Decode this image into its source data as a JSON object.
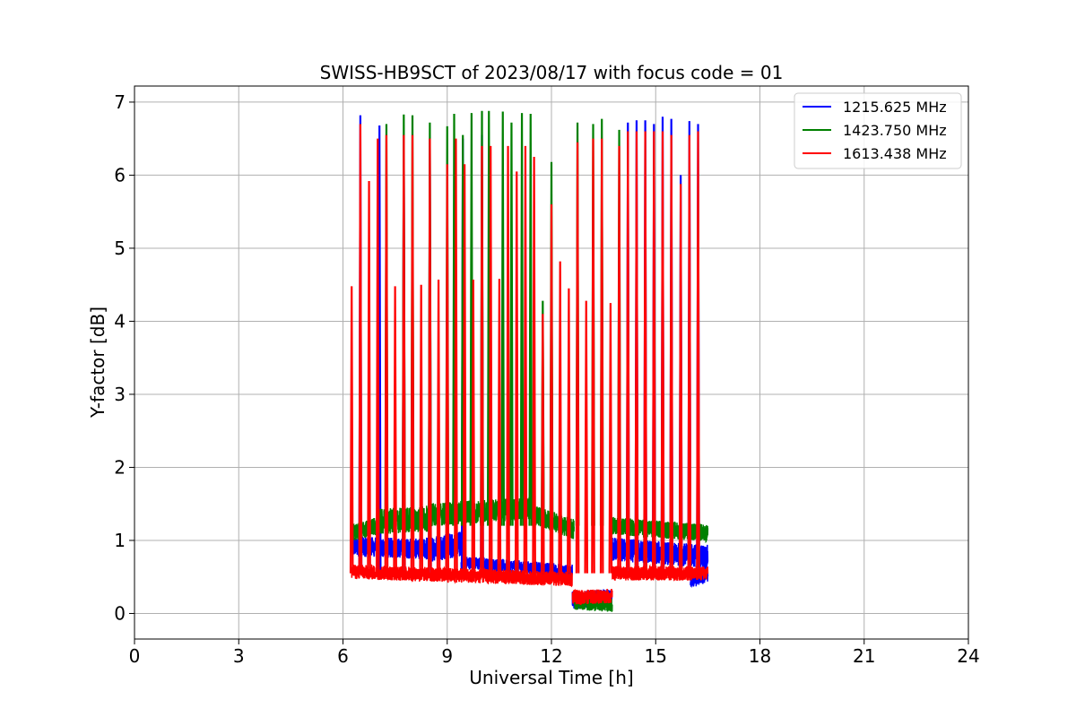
{
  "chart_data": {
    "type": "line",
    "title": "SWISS-HB9SCT of 2023/08/17 with focus code = 01",
    "xlabel": "Universal Time [h]",
    "ylabel": "Y-factor [dB]",
    "xlim": [
      0,
      24
    ],
    "ylim": [
      -0.35,
      7.22
    ],
    "xticks": [
      0,
      3,
      6,
      9,
      12,
      15,
      18,
      21,
      24
    ],
    "yticks": [
      0,
      1,
      2,
      3,
      4,
      5,
      6,
      7
    ],
    "grid": true,
    "legend_position": "upper right",
    "series": [
      {
        "name": "1215.625 MHz",
        "color": "#0000ff",
        "baseline_segments": [
          {
            "from": 6.25,
            "to": 8.4,
            "start": 0.92,
            "end": 0.88,
            "noise": 0.14
          },
          {
            "from": 8.4,
            "to": 9.4,
            "start": 0.88,
            "end": 0.95,
            "noise": 0.18
          },
          {
            "from": 9.4,
            "to": 12.6,
            "start": 0.7,
            "end": 0.58,
            "noise": 0.09
          },
          {
            "from": 12.6,
            "to": 13.75,
            "start": 0.18,
            "end": 0.22,
            "noise": 0.12
          },
          {
            "from": 13.75,
            "to": 16.5,
            "start": 0.88,
            "end": 0.78,
            "noise": 0.16
          },
          {
            "from": 16.0,
            "to": 16.5,
            "start": 0.45,
            "end": 0.55,
            "noise": 0.12
          }
        ],
        "spikes": [
          {
            "t": 6.5,
            "v": 6.82
          },
          {
            "t": 7.05,
            "v": 6.68
          },
          {
            "t": 7.75,
            "v": 6.55
          },
          {
            "t": 8.5,
            "v": 6.5
          },
          {
            "t": 9.45,
            "v": 6.5
          },
          {
            "t": 10.0,
            "v": 6.55
          },
          {
            "t": 14.2,
            "v": 6.72
          },
          {
            "t": 14.45,
            "v": 6.75
          },
          {
            "t": 14.7,
            "v": 6.75
          },
          {
            "t": 14.95,
            "v": 6.7
          },
          {
            "t": 15.2,
            "v": 6.8
          },
          {
            "t": 15.45,
            "v": 6.77
          },
          {
            "t": 15.72,
            "v": 6.0
          },
          {
            "t": 15.97,
            "v": 6.74
          },
          {
            "t": 16.22,
            "v": 6.7
          }
        ]
      },
      {
        "name": "1423.750 MHz",
        "color": "#008000",
        "baseline_segments": [
          {
            "from": 6.25,
            "to": 7.0,
            "start": 1.1,
            "end": 1.2,
            "noise": 0.12
          },
          {
            "from": 7.0,
            "to": 8.5,
            "start": 1.25,
            "end": 1.3,
            "noise": 0.18
          },
          {
            "from": 8.5,
            "to": 11.5,
            "start": 1.35,
            "end": 1.45,
            "noise": 0.16
          },
          {
            "from": 11.5,
            "to": 12.65,
            "start": 1.35,
            "end": 1.15,
            "noise": 0.14
          },
          {
            "from": 12.65,
            "to": 13.75,
            "start": 0.15,
            "end": 0.12,
            "noise": 0.1
          },
          {
            "from": 13.75,
            "to": 16.5,
            "start": 1.2,
            "end": 1.1,
            "noise": 0.12
          }
        ],
        "spikes": [
          {
            "t": 7.25,
            "v": 6.7
          },
          {
            "t": 7.75,
            "v": 6.83
          },
          {
            "t": 8.0,
            "v": 6.82
          },
          {
            "t": 8.5,
            "v": 6.72
          },
          {
            "t": 9.0,
            "v": 6.67
          },
          {
            "t": 9.2,
            "v": 6.84
          },
          {
            "t": 9.45,
            "v": 6.55
          },
          {
            "t": 9.7,
            "v": 6.85
          },
          {
            "t": 10.0,
            "v": 6.88
          },
          {
            "t": 10.2,
            "v": 6.88
          },
          {
            "t": 10.6,
            "v": 6.87
          },
          {
            "t": 10.85,
            "v": 6.72
          },
          {
            "t": 11.15,
            "v": 6.85
          },
          {
            "t": 11.4,
            "v": 6.84
          },
          {
            "t": 11.75,
            "v": 4.28
          },
          {
            "t": 12.0,
            "v": 6.18
          },
          {
            "t": 12.75,
            "v": 6.72
          },
          {
            "t": 13.2,
            "v": 6.7
          },
          {
            "t": 13.45,
            "v": 6.77
          },
          {
            "t": 13.95,
            "v": 6.62
          }
        ]
      },
      {
        "name": "1613.438 MHz",
        "color": "#ff0000",
        "baseline_segments": [
          {
            "from": 6.25,
            "to": 12.6,
            "start": 0.57,
            "end": 0.47,
            "noise": 0.1
          },
          {
            "from": 12.6,
            "to": 13.75,
            "start": 0.22,
            "end": 0.24,
            "noise": 0.1
          },
          {
            "from": 13.75,
            "to": 16.5,
            "start": 0.55,
            "end": 0.55,
            "noise": 0.1
          }
        ],
        "spikes": [
          {
            "t": 6.25,
            "v": 4.48
          },
          {
            "t": 6.5,
            "v": 6.7
          },
          {
            "t": 6.75,
            "v": 5.92
          },
          {
            "t": 7.0,
            "v": 6.5
          },
          {
            "t": 7.25,
            "v": 6.55
          },
          {
            "t": 7.5,
            "v": 4.48
          },
          {
            "t": 7.75,
            "v": 6.55
          },
          {
            "t": 8.0,
            "v": 6.55
          },
          {
            "t": 8.25,
            "v": 4.5
          },
          {
            "t": 8.5,
            "v": 6.5
          },
          {
            "t": 8.75,
            "v": 4.57
          },
          {
            "t": 9.0,
            "v": 6.15
          },
          {
            "t": 9.25,
            "v": 6.5
          },
          {
            "t": 9.5,
            "v": 6.15
          },
          {
            "t": 9.75,
            "v": 4.57
          },
          {
            "t": 10.0,
            "v": 6.4
          },
          {
            "t": 10.25,
            "v": 6.4
          },
          {
            "t": 10.5,
            "v": 4.58
          },
          {
            "t": 10.75,
            "v": 6.4
          },
          {
            "t": 11.0,
            "v": 6.05
          },
          {
            "t": 11.25,
            "v": 6.4
          },
          {
            "t": 11.5,
            "v": 6.25
          },
          {
            "t": 11.75,
            "v": 4.1
          },
          {
            "t": 12.0,
            "v": 5.6
          },
          {
            "t": 12.25,
            "v": 4.82
          },
          {
            "t": 12.5,
            "v": 4.45
          },
          {
            "t": 12.75,
            "v": 6.45
          },
          {
            "t": 13.0,
            "v": 4.28
          },
          {
            "t": 13.2,
            "v": 6.5
          },
          {
            "t": 13.45,
            "v": 6.5
          },
          {
            "t": 13.7,
            "v": 4.25
          },
          {
            "t": 13.95,
            "v": 6.4
          },
          {
            "t": 14.2,
            "v": 6.6
          },
          {
            "t": 14.45,
            "v": 6.6
          },
          {
            "t": 14.7,
            "v": 6.6
          },
          {
            "t": 14.95,
            "v": 6.6
          },
          {
            "t": 15.2,
            "v": 6.6
          },
          {
            "t": 15.45,
            "v": 6.55
          },
          {
            "t": 15.72,
            "v": 5.88
          },
          {
            "t": 15.97,
            "v": 6.55
          },
          {
            "t": 16.22,
            "v": 6.6
          }
        ]
      }
    ]
  }
}
